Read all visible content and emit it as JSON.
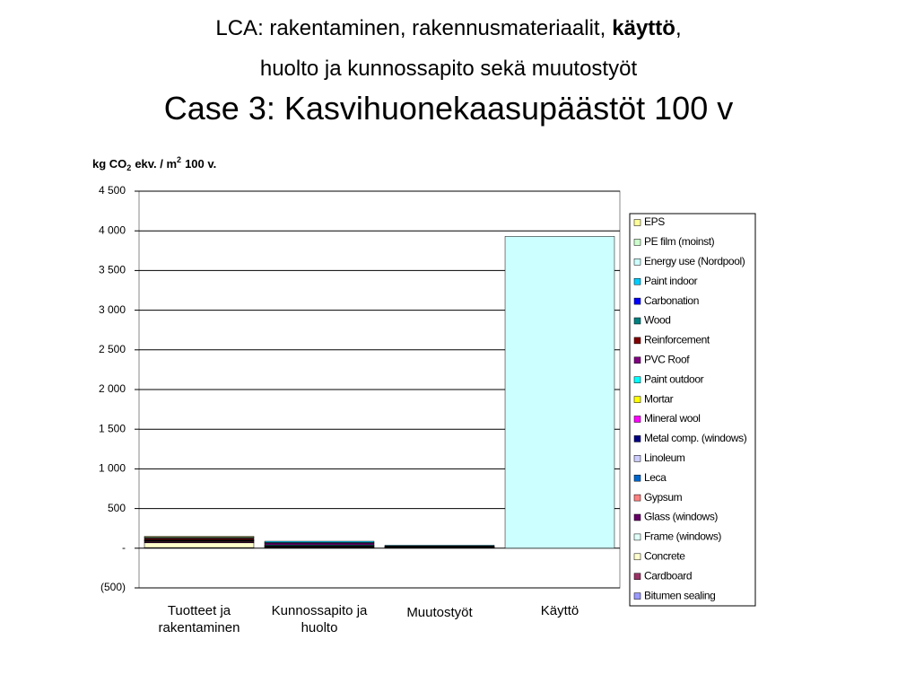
{
  "chart_data": {
    "type": "bar",
    "stacked": true,
    "subtitle": {
      "line1": [
        "LCA: rakentaminen, rakennusmateriaalit,",
        "käyttö",
        ","
      ],
      "line2": "huolto ja kunnossapito sekä muutostyöt"
    },
    "title": "Case 3: Kasvihuonekaasupäästöt 100 v",
    "y_label": [
      "kg CO",
      "2",
      "ekv. / m",
      "2",
      "100 v."
    ],
    "categories": [
      "Tuotteet ja rakentaminen",
      "Kunnossapito ja huolto",
      "Muutostyöt",
      "Käyttö"
    ],
    "ylim": [
      -500,
      4500
    ],
    "yticks": [
      {
        "value": -500,
        "label": "(500)"
      },
      {
        "value": 0,
        "label": "-"
      },
      500,
      {
        "value": 1000,
        "label": "1 000"
      },
      {
        "value": 1500,
        "label": "1 500"
      },
      {
        "value": 2000,
        "label": "2 000"
      },
      {
        "value": 2500,
        "label": "2 500"
      },
      {
        "value": 3000,
        "label": "3 000"
      },
      {
        "value": 3500,
        "label": "3 500"
      },
      {
        "value": 4000,
        "label": "4 000"
      },
      {
        "value": 4500,
        "label": "4 500"
      }
    ],
    "grid": true,
    "legend": "right",
    "series": [
      {
        "name": "EPS",
        "color": "#ffff99",
        "values": [
          12,
          0,
          0,
          0
        ]
      },
      {
        "name": "PE film (moinst)",
        "color": "#ccffcc",
        "values": [
          3,
          0,
          0,
          0
        ]
      },
      {
        "name": "Energy use (Nordpool)",
        "color": "#ccffff",
        "values": [
          0,
          0,
          0,
          3930
        ]
      },
      {
        "name": "Paint indoor",
        "color": "#00ccff",
        "values": [
          0,
          15,
          8,
          0
        ]
      },
      {
        "name": "Carbonation",
        "color": "#0000ff",
        "values": [
          0,
          0,
          0,
          0
        ]
      },
      {
        "name": "Wood",
        "color": "#008080",
        "values": [
          10,
          10,
          5,
          0
        ]
      },
      {
        "name": "Reinforcement",
        "color": "#800000",
        "values": [
          15,
          0,
          3,
          0
        ]
      },
      {
        "name": "PVC Roof",
        "color": "#800080",
        "values": [
          3,
          20,
          5,
          0
        ]
      },
      {
        "name": "Paint outdoor",
        "color": "#00ffff",
        "values": [
          0,
          10,
          3,
          0
        ]
      },
      {
        "name": "Mortar",
        "color": "#ffff00",
        "values": [
          3,
          0,
          0,
          0
        ]
      },
      {
        "name": "Mineral wool",
        "color": "#ff00ff",
        "values": [
          5,
          0,
          0,
          0
        ]
      },
      {
        "name": "Metal comp. (windows)",
        "color": "#000080",
        "values": [
          2,
          5,
          2,
          0
        ]
      },
      {
        "name": "Linoleum",
        "color": "#ccccff",
        "values": [
          3,
          5,
          2,
          0
        ]
      },
      {
        "name": "Leca",
        "color": "#0066cc",
        "values": [
          5,
          0,
          0,
          0
        ]
      },
      {
        "name": "Gypsum",
        "color": "#ff8080",
        "values": [
          8,
          3,
          2,
          0
        ]
      },
      {
        "name": "Glass (windows)",
        "color": "#660066",
        "values": [
          10,
          10,
          3,
          0
        ]
      },
      {
        "name": "Frame (windows)",
        "color": "#e0fff8",
        "values": [
          3,
          5,
          2,
          0
        ]
      },
      {
        "name": "Concrete",
        "color": "#ffffcc",
        "values": [
          60,
          0,
          2,
          0
        ]
      },
      {
        "name": "Cardboard",
        "color": "#993366",
        "values": [
          3,
          0,
          0,
          0
        ]
      },
      {
        "name": "Bitumen sealing",
        "color": "#9999ff",
        "values": [
          5,
          5,
          0,
          0
        ]
      }
    ]
  }
}
